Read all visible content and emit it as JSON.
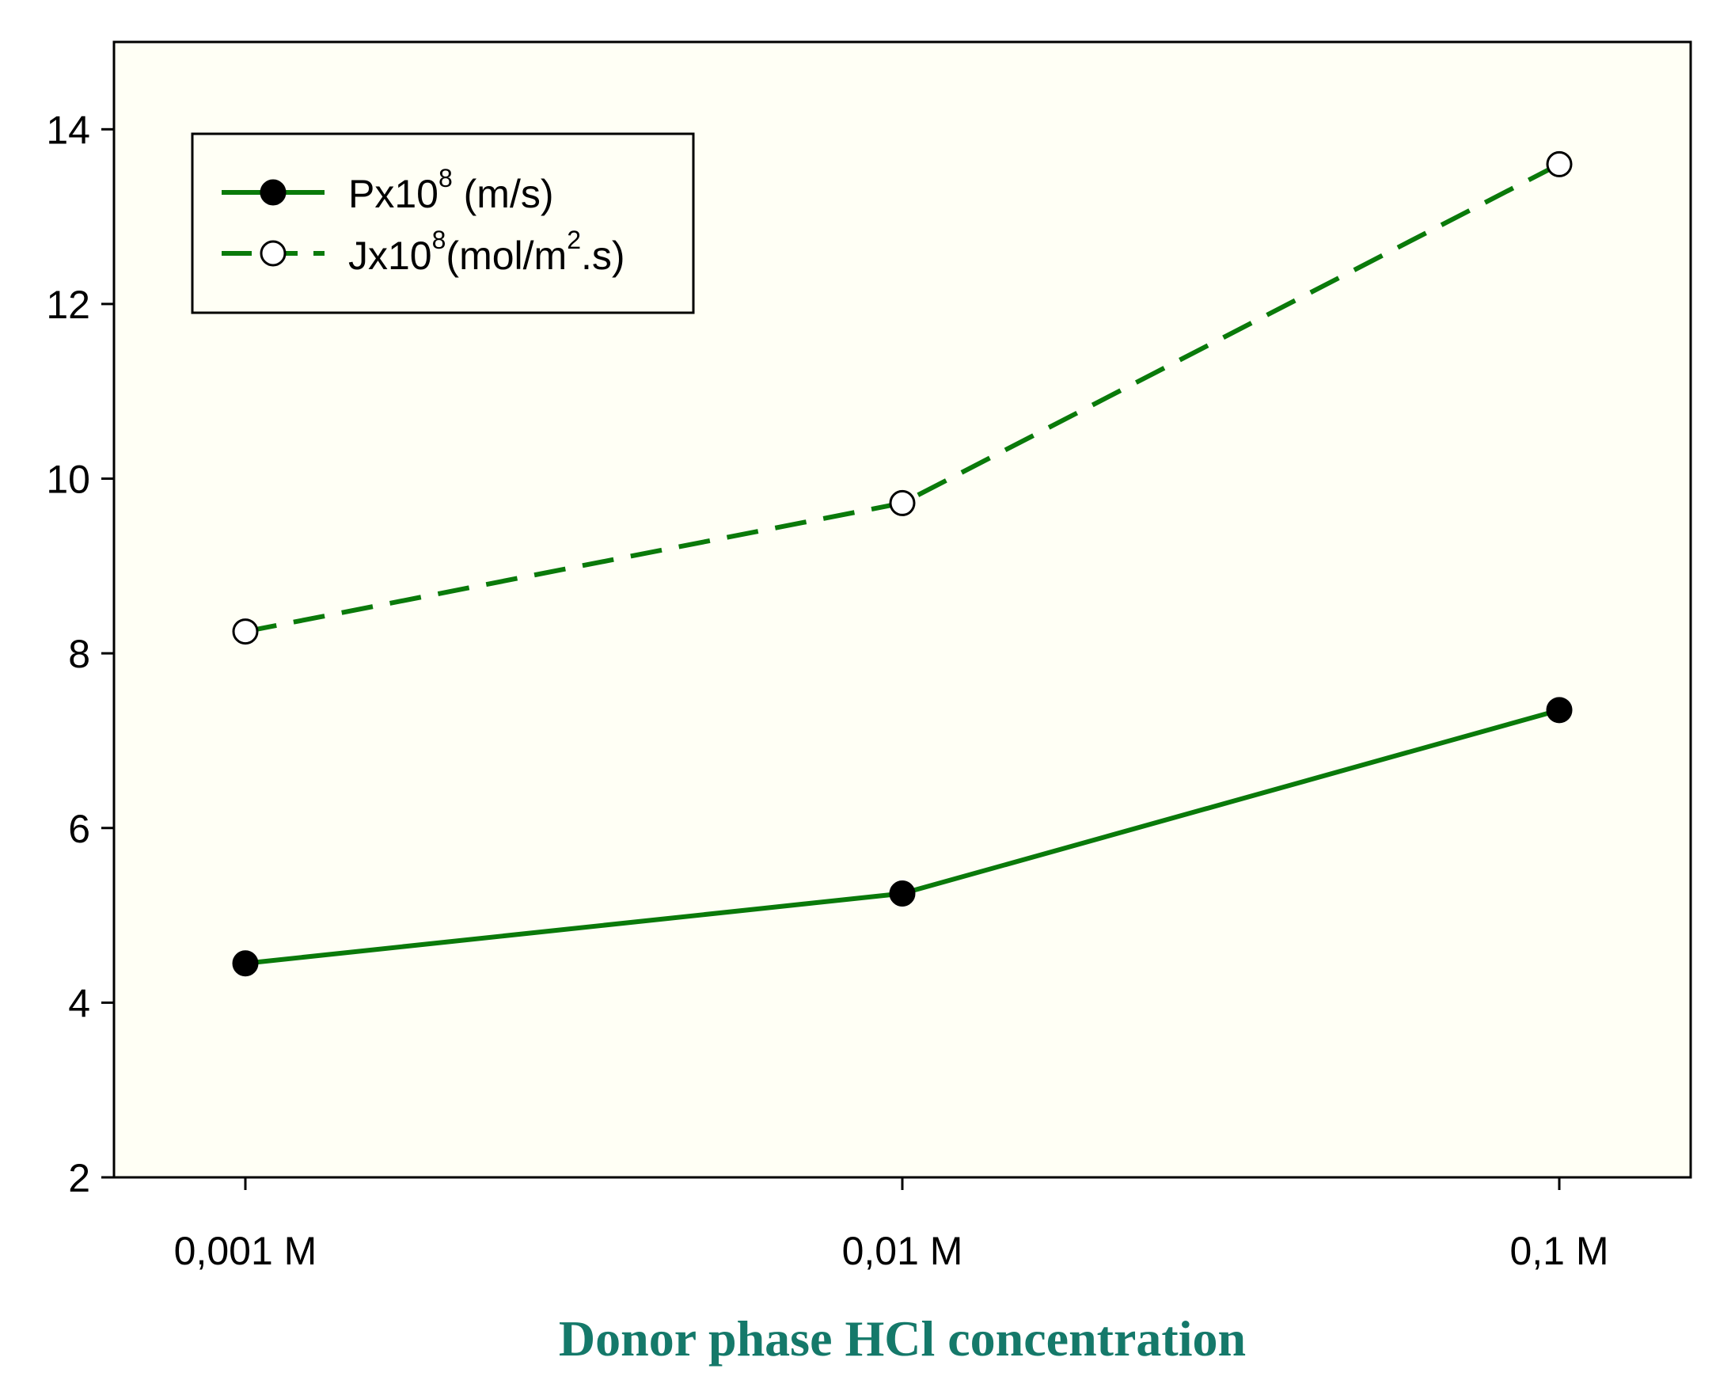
{
  "colors": {
    "plot_background": "#fffff5",
    "series_line": "#0a7a0a",
    "xlabel": "#15796a",
    "axis": "#000000"
  },
  "chart_data": {
    "type": "line",
    "categories": [
      "0,001 M",
      "0,01 M",
      "0,1 M"
    ],
    "xlabel": "Donor phase HCl concentration",
    "ylabel": "",
    "ylim": [
      2,
      15
    ],
    "yticks": [
      2,
      4,
      6,
      8,
      10,
      12,
      14
    ],
    "grid": false,
    "legend_position": "top-left",
    "series": [
      {
        "name": "Px10^8 (m/s)",
        "legend": {
          "base": "Px10",
          "sup": "8",
          "rest": " (m/s)"
        },
        "values": [
          4.45,
          5.25,
          7.35
        ],
        "line_style": "solid",
        "marker": "filled-circle"
      },
      {
        "name": "Jx10^8(mol/m^2.s)",
        "legend": {
          "base": "Jx10",
          "sup": "8",
          "mid": "(mol/m",
          "sup2": "2",
          "rest": ".s)"
        },
        "values": [
          8.25,
          9.72,
          13.6
        ],
        "line_style": "dashed",
        "marker": "open-circle"
      }
    ]
  }
}
